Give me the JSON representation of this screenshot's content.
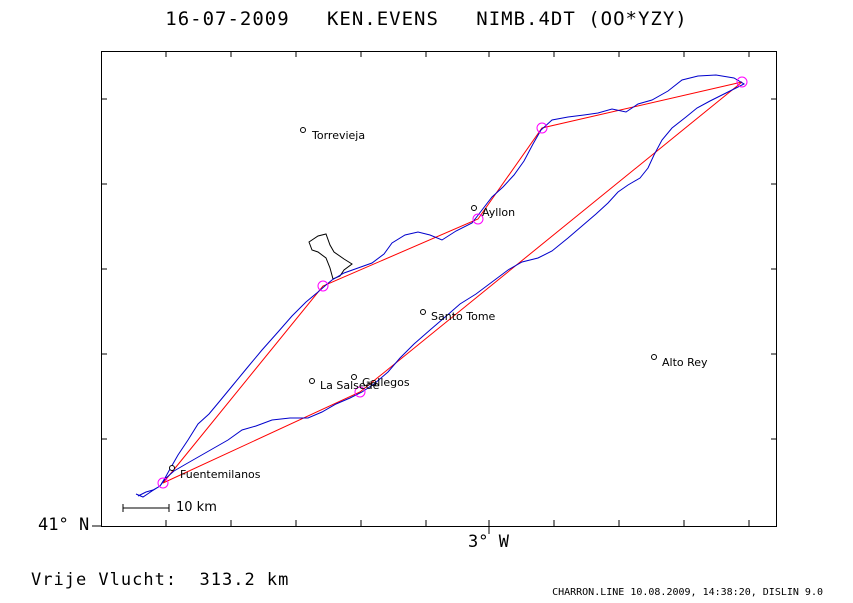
{
  "title": "16-07-2009   KEN.EVENS   NIMB.4DT (OO*YZY)",
  "axis": {
    "lat_label": "41° N",
    "lon_label": "3° W"
  },
  "scale_bar": {
    "label": "10 km"
  },
  "places": [
    {
      "name": "Torrevieja"
    },
    {
      "name": "Ayllon"
    },
    {
      "name": "Santo Tome"
    },
    {
      "name": "Alto Rey"
    },
    {
      "name": "La Salsede"
    },
    {
      "name": "Gallegos"
    },
    {
      "name": "Fuentemilanos"
    }
  ],
  "footer": {
    "distance": "Vrije Vlucht:  313.2 km",
    "credit": "CHARRON.LINE 10.08.2009, 14:38:20, DISLIN 9.0"
  },
  "colors": {
    "track": "#0000cc",
    "task_line": "#ff0000",
    "turnpoint": "#ff00ff",
    "text": "#000000"
  }
}
